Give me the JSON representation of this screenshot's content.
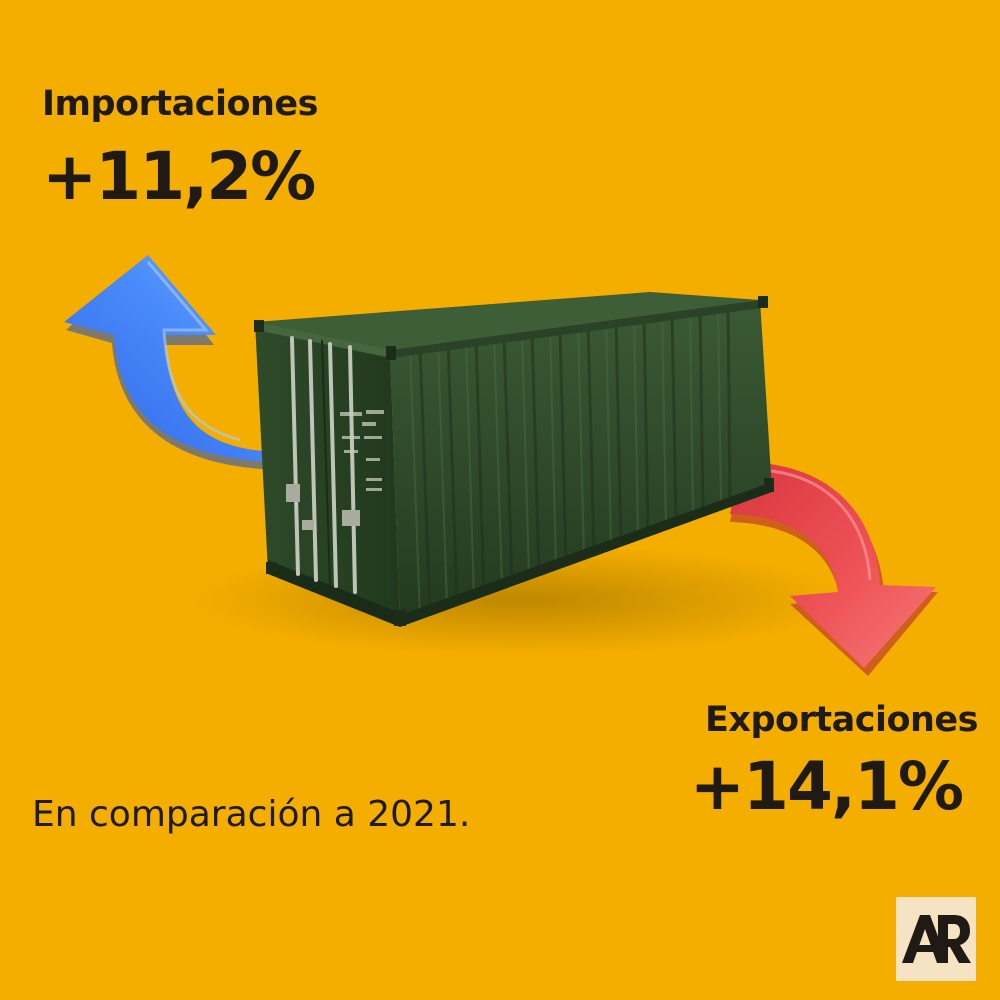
{
  "imports": {
    "label": "Importaciones",
    "value": "+11,2%"
  },
  "exports": {
    "label": "Exportaciones",
    "value": "+14,1%"
  },
  "footnote": "En comparación a 2021.",
  "logo": {
    "text": "AR",
    "icon": "ar-logo-icon"
  },
  "illustration": {
    "container_icon": "shipping-container-icon",
    "import_arrow_icon": "arrow-up-left-icon",
    "export_arrow_icon": "arrow-down-right-icon"
  },
  "colors": {
    "background": "#F4AE00",
    "text": "#1f1a14",
    "import_arrow": "#3F7BF5",
    "export_arrow": "#E8464C",
    "container": "#2E4A2A",
    "logo_bg": "#F6E3C3"
  }
}
